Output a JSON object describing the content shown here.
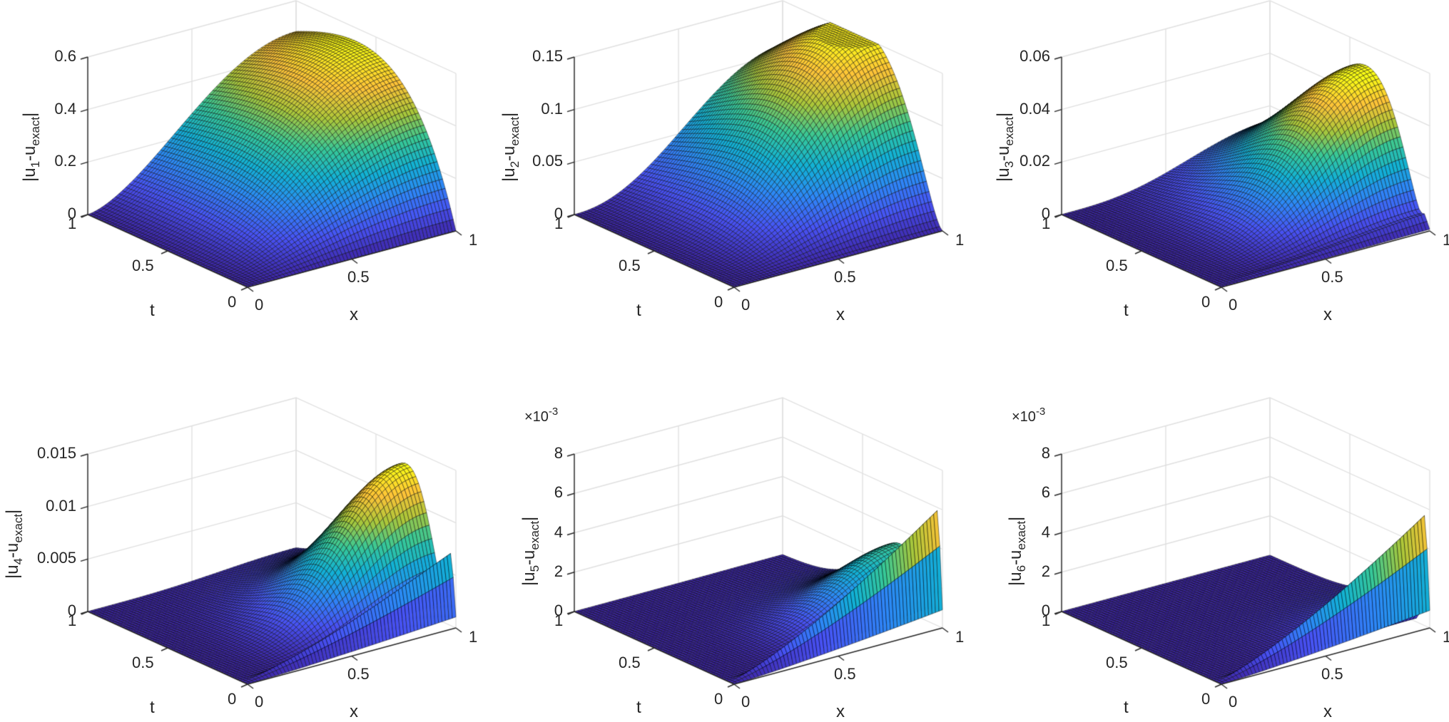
{
  "figure": {
    "layout": {
      "rows": 2,
      "cols": 3
    },
    "colors": {
      "axis": "#262626",
      "grid": "#dfdfdf",
      "edge": "#000000",
      "colormap": "parula"
    }
  },
  "chart_data": [
    {
      "type": "surface",
      "title": "",
      "panel": 1,
      "xlabel": "x",
      "ylabel": "t",
      "zlabel": "|u_1-u_exact|",
      "zlabel_main": "|u",
      "zlabel_sub1": "1",
      "zlabel_mid": "-u",
      "zlabel_sub2": "exact",
      "zlabel_end": "|",
      "xlim": [
        0,
        1
      ],
      "ylim": [
        0,
        1
      ],
      "zlim": [
        0,
        0.6
      ],
      "xticks": [
        "0",
        "0.5",
        "1"
      ],
      "yticks": [
        "0",
        "0.5",
        "1"
      ],
      "zticks": [
        "0",
        "0.2",
        "0.4",
        "0.6"
      ],
      "zmultiplier": "",
      "peak": {
        "x": 1.0,
        "t": 0.5,
        "z": 0.55
      },
      "grid": true,
      "model": {
        "amp": 0.55,
        "px": 1.6,
        "tq": 1.0,
        "tr": 1.6,
        "wall": 0
      }
    },
    {
      "type": "surface",
      "title": "",
      "panel": 2,
      "xlabel": "x",
      "ylabel": "t",
      "zlabel": "|u_2-u_exact|",
      "zlabel_main": "|u",
      "zlabel_sub1": "2",
      "zlabel_mid": "-u",
      "zlabel_sub2": "exact",
      "zlabel_end": "|",
      "xlim": [
        0,
        1
      ],
      "ylim": [
        0,
        1
      ],
      "zlim": [
        0,
        0.15
      ],
      "xticks": [
        "0",
        "0.5",
        "1"
      ],
      "yticks": [
        "0",
        "0.5",
        "1"
      ],
      "zticks": [
        "0",
        "0.05",
        "0.1",
        "0.15"
      ],
      "zmultiplier": "",
      "peak": {
        "x": 1.0,
        "t": 0.45,
        "z": 0.155
      },
      "grid": true,
      "model": {
        "amp": 0.16,
        "px": 2.2,
        "tq": 1.6,
        "tr": 3.0,
        "wall": 0
      }
    },
    {
      "type": "surface",
      "title": "",
      "panel": 3,
      "xlabel": "x",
      "ylabel": "t",
      "zlabel": "|u_3-u_exact|",
      "zlabel_main": "|u",
      "zlabel_sub1": "3",
      "zlabel_mid": "-u",
      "zlabel_sub2": "exact",
      "zlabel_end": "|",
      "xlim": [
        0,
        1
      ],
      "ylim": [
        0,
        1
      ],
      "zlim": [
        0,
        0.06
      ],
      "xticks": [
        "0",
        "0.5",
        "1"
      ],
      "yticks": [
        "0",
        "0.5",
        "1"
      ],
      "zticks": [
        "0",
        "0.02",
        "0.04",
        "0.06"
      ],
      "zmultiplier": "",
      "peak": {
        "x": 1.0,
        "t": 0.35,
        "z": 0.05
      },
      "grid": true,
      "model": {
        "amp": 0.052,
        "px": 3.0,
        "tq": 2.2,
        "tr": 5.5,
        "wall": 0.004
      }
    },
    {
      "type": "surface",
      "title": "",
      "panel": 4,
      "xlabel": "x",
      "ylabel": "t",
      "zlabel": "|u_4-u_exact|",
      "zlabel_main": "|u",
      "zlabel_sub1": "4",
      "zlabel_mid": "-u",
      "zlabel_sub2": "exact",
      "zlabel_end": "|",
      "xlim": [
        0,
        1
      ],
      "ylim": [
        0,
        1
      ],
      "zlim": [
        0,
        0.015
      ],
      "xticks": [
        "0",
        "0.5",
        "1"
      ],
      "yticks": [
        "0",
        "0.5",
        "1"
      ],
      "zticks": [
        "0",
        "0.005",
        "0.01",
        "0.015"
      ],
      "zmultiplier": "",
      "peak": {
        "x": 1.0,
        "t": 0.28,
        "z": 0.0135
      },
      "grid": true,
      "model": {
        "amp": 0.0135,
        "px": 3.5,
        "tq": 2.8,
        "tr": 9.0,
        "wall": 0.0067
      }
    },
    {
      "type": "surface",
      "title": "",
      "panel": 5,
      "xlabel": "x",
      "ylabel": "t",
      "zlabel": "|u_5-u_exact|",
      "zlabel_main": "|u",
      "zlabel_sub1": "5",
      "zlabel_mid": "-u",
      "zlabel_sub2": "exact",
      "zlabel_end": "|",
      "xlim": [
        0,
        1
      ],
      "ylim": [
        0,
        1
      ],
      "zlim": [
        0,
        0.008
      ],
      "xticks": [
        "0",
        "0.5",
        "1"
      ],
      "yticks": [
        "0",
        "0.5",
        "1"
      ],
      "zticks": [
        "0",
        "2",
        "4",
        "6",
        "8"
      ],
      "zmultiplier": "×10",
      "zmultiplier_exp": "-3",
      "peak": {
        "x": 1.0,
        "t": 0.02,
        "z": 0.0059
      },
      "grid": true,
      "model": {
        "amp": 0.0033,
        "px": 4.0,
        "tq": 3.2,
        "tr": 12.0,
        "wall": 0.0059
      }
    },
    {
      "type": "surface",
      "title": "",
      "panel": 6,
      "xlabel": "x",
      "ylabel": "t",
      "zlabel": "|u_6-u_exact|",
      "zlabel_main": "|u",
      "zlabel_sub1": "6",
      "zlabel_mid": "-u",
      "zlabel_sub2": "exact",
      "zlabel_end": "|",
      "xlim": [
        0,
        1
      ],
      "ylim": [
        0,
        1
      ],
      "zlim": [
        0,
        0.008
      ],
      "xticks": [
        "0",
        "0.5",
        "1"
      ],
      "yticks": [
        "0",
        "0.5",
        "1"
      ],
      "zticks": [
        "0",
        "2",
        "4",
        "6",
        "8"
      ],
      "zmultiplier": "×10",
      "zmultiplier_exp": "-3",
      "peak": {
        "x": 1.0,
        "t": 0.02,
        "z": 0.0057
      },
      "grid": true,
      "model": {
        "amp": 0.0008,
        "px": 4.0,
        "tq": 3.5,
        "tr": 14.0,
        "wall": 0.0057
      }
    }
  ]
}
